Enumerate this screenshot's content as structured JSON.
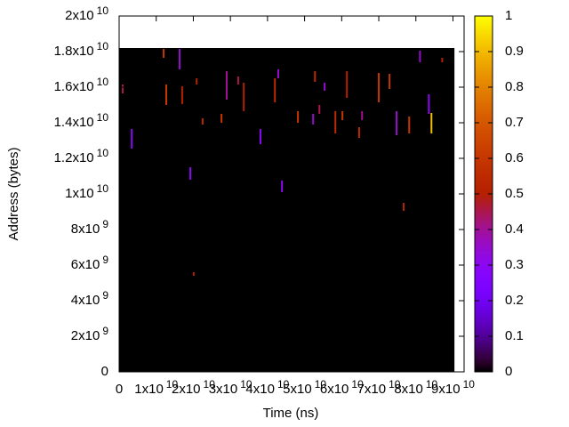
{
  "chart_data": {
    "type": "heatmap",
    "xlabel": "Time (ns)",
    "ylabel": "Address (bytes)",
    "xlim": [
      0,
      93000000000
    ],
    "ylim": [
      0,
      20000000000
    ],
    "xticks": [
      0,
      {
        "value": 10000000000,
        "label": "1x10",
        "exponent": "10"
      },
      {
        "value": 20000000000,
        "label": "2x10",
        "exponent": "10"
      },
      {
        "value": 30000000000,
        "label": "3x10",
        "exponent": "10"
      },
      {
        "value": 40000000000,
        "label": "4x10",
        "exponent": "10"
      },
      {
        "value": 50000000000,
        "label": "5x10",
        "exponent": "10"
      },
      {
        "value": 60000000000,
        "label": "6x10",
        "exponent": "10"
      },
      {
        "value": 70000000000,
        "label": "7x10",
        "exponent": "10"
      },
      {
        "value": 80000000000,
        "label": "8x10",
        "exponent": "10"
      },
      {
        "value": 90000000000,
        "label": "9x10",
        "exponent": "10"
      }
    ],
    "yticks": [
      0,
      {
        "value": 2000000000,
        "label": "2x10",
        "exponent": "9"
      },
      {
        "value": 4000000000,
        "label": "4x10",
        "exponent": "9"
      },
      {
        "value": 6000000000,
        "label": "6x10",
        "exponent": "9"
      },
      {
        "value": 8000000000,
        "label": "8x10",
        "exponent": "9"
      },
      {
        "value": 10000000000,
        "label": "1x10",
        "exponent": "10"
      },
      {
        "value": 12000000000,
        "label": "1.2x10",
        "exponent": "10"
      },
      {
        "value": 14000000000,
        "label": "1.4x10",
        "exponent": "10"
      },
      {
        "value": 16000000000,
        "label": "1.6x10",
        "exponent": "10"
      },
      {
        "value": 18000000000,
        "label": "1.8x10",
        "exponent": "10"
      },
      {
        "value": 20000000000,
        "label": "2x10",
        "exponent": "10"
      }
    ],
    "cblim": [
      0,
      1
    ],
    "cbticks": [
      0,
      0.1,
      0.2,
      0.3,
      0.4,
      0.5,
      0.6,
      0.7,
      0.8,
      0.9,
      1
    ],
    "x_extent": [
      0,
      90400000000
    ],
    "y_extent": [
      0,
      18200000000
    ],
    "cells": {
      "x": [
        960000000,
        3400000000,
        12000000000,
        16300000000,
        12700000000,
        17000000000,
        19200000000,
        20900000000,
        22500000000,
        27600000000,
        29000000000,
        32100000000,
        33600000000,
        38100000000,
        42000000000,
        42900000000,
        43900000000,
        48200000000,
        52300000000,
        52800000000,
        54000000000,
        55400000000,
        58300000000,
        60200000000,
        61400000000,
        64700000000,
        65500000000,
        70000000000,
        72900000000,
        74800000000,
        76700000000,
        78200000000,
        81100000000,
        83500000000,
        84200000000,
        87100000000,
        20100000000
      ],
      "y_start": [
        15650000000,
        12550000000,
        17650000000,
        17000000000,
        15000000000,
        15050000000,
        10800000000,
        16150000000,
        13900000000,
        14000000000,
        15300000000,
        16150000000,
        14650000000,
        12800000000,
        15150000000,
        16500000000,
        10100000000,
        14000000000,
        13900000000,
        16300000000,
        14500000000,
        15800000000,
        13400000000,
        14150000000,
        15400000000,
        13150000000,
        14150000000,
        15150000000,
        15900000000,
        13300000000,
        9050000000,
        13400000000,
        17400000000,
        14500000000,
        13400000000,
        17400000000,
        5400000000
      ],
      "y_end": [
        16150000000,
        13650000000,
        18150000000,
        18150000000,
        16150000000,
        16050000000,
        11500000000,
        16500000000,
        14250000000,
        14500000000,
        16900000000,
        16600000000,
        16250000000,
        13650000000,
        16500000000,
        17000000000,
        10750000000,
        14650000000,
        14500000000,
        16900000000,
        15000000000,
        16250000000,
        14650000000,
        14650000000,
        16900000000,
        13750000000,
        14650000000,
        16800000000,
        16750000000,
        14650000000,
        9500000000,
        14350000000,
        18050000000,
        15600000000,
        14550000000,
        17650000000,
        5600000000
      ],
      "values": [
        0.45,
        0.3,
        0.6,
        0.35,
        0.6,
        0.5,
        0.3,
        0.5,
        0.55,
        0.6,
        0.4,
        0.45,
        0.5,
        0.3,
        0.55,
        0.35,
        0.3,
        0.6,
        0.35,
        0.55,
        0.45,
        0.35,
        0.55,
        0.6,
        0.5,
        0.55,
        0.4,
        0.6,
        0.6,
        0.35,
        0.5,
        0.6,
        0.35,
        0.3,
        0.9,
        0.5,
        0.5
      ]
    }
  }
}
